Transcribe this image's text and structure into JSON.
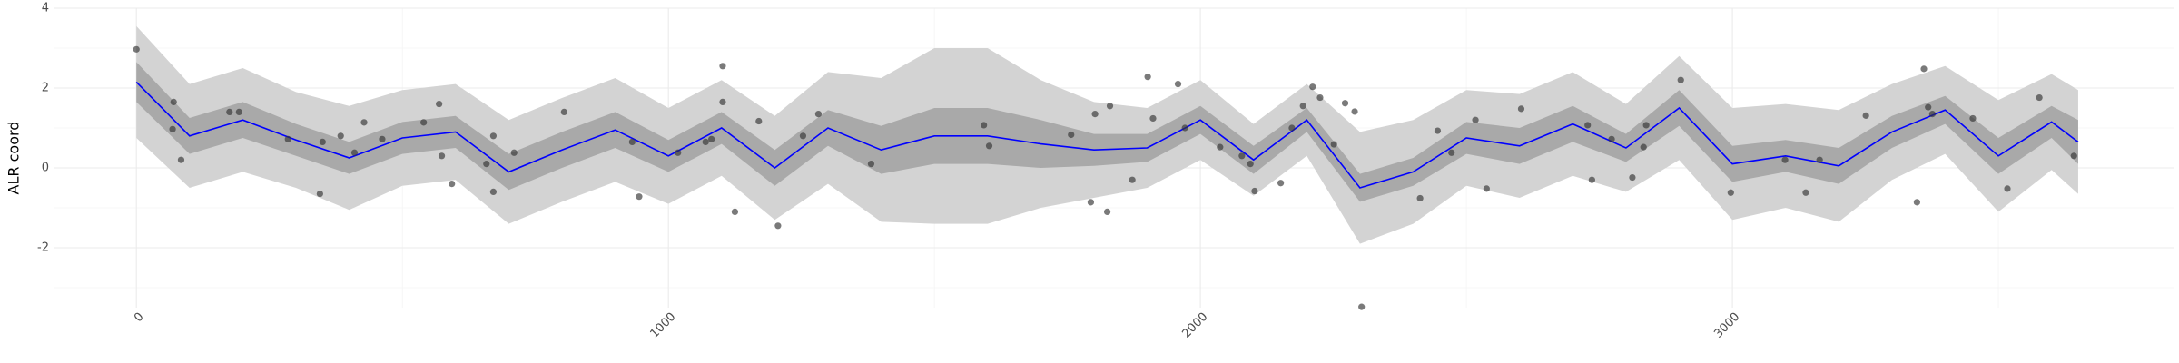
{
  "chart_data": {
    "type": "band-line",
    "ylabel": "ALR coord",
    "xlim": [
      -154,
      3831
    ],
    "ylim": [
      -3.5,
      4
    ],
    "xticks": [
      0,
      1000,
      2000,
      3000
    ],
    "yticks": [
      4,
      2,
      0,
      -2
    ],
    "x_minor_grid": [
      500,
      1500,
      2500,
      3500
    ],
    "y_minor_grid": [
      3,
      1,
      -1,
      -3
    ],
    "grid": true,
    "x": [
      0,
      100,
      200,
      300,
      400,
      500,
      600,
      700,
      800,
      900,
      1000,
      1100,
      1200,
      1300,
      1400,
      1500,
      1600,
      1700,
      1800,
      1900,
      2000,
      2100,
      2200,
      2300,
      2400,
      2500,
      2600,
      2700,
      2800,
      2900,
      3000,
      3100,
      3200,
      3300,
      3400,
      3500,
      3600,
      3650
    ],
    "band_outer": {
      "color": "#d3d3d3",
      "lower": [
        0.75,
        -0.5,
        -0.1,
        -0.5,
        -1.05,
        -0.45,
        -0.3,
        -1.4,
        -0.85,
        -0.35,
        -0.9,
        -0.2,
        -1.3,
        -0.4,
        -1.35,
        -1.4,
        -1.4,
        -1.0,
        -0.75,
        -0.5,
        0.2,
        -0.7,
        0.3,
        -1.9,
        -1.4,
        -0.45,
        -0.75,
        -0.2,
        -0.6,
        0.2,
        -1.3,
        -1.0,
        -1.35,
        -0.3,
        0.35,
        -1.1,
        -0.05,
        -0.65
      ],
      "upper": [
        3.55,
        2.1,
        2.5,
        1.9,
        1.55,
        1.95,
        2.1,
        1.2,
        1.75,
        2.25,
        1.5,
        2.2,
        1.3,
        2.4,
        2.25,
        3.0,
        3.0,
        2.2,
        1.65,
        1.5,
        2.2,
        1.1,
        2.1,
        0.9,
        1.2,
        1.95,
        1.85,
        2.4,
        1.6,
        2.8,
        1.5,
        1.6,
        1.45,
        2.1,
        2.55,
        1.7,
        2.35,
        1.95
      ]
    },
    "band_inner": {
      "color": "#a9a9a9",
      "lower": [
        1.65,
        0.35,
        0.75,
        0.3,
        -0.15,
        0.35,
        0.5,
        -0.55,
        0.0,
        0.5,
        -0.1,
        0.6,
        -0.45,
        0.55,
        -0.15,
        0.1,
        0.1,
        0.0,
        0.05,
        0.15,
        0.85,
        -0.15,
        0.9,
        -0.85,
        -0.45,
        0.35,
        0.1,
        0.65,
        0.15,
        1.05,
        -0.35,
        -0.1,
        -0.4,
        0.5,
        1.1,
        -0.15,
        0.75,
        0.1
      ],
      "upper": [
        2.65,
        1.25,
        1.65,
        1.1,
        0.65,
        1.15,
        1.3,
        0.35,
        0.9,
        1.4,
        0.7,
        1.4,
        0.45,
        1.45,
        1.05,
        1.5,
        1.5,
        1.2,
        0.85,
        0.85,
        1.55,
        0.55,
        1.5,
        -0.15,
        0.25,
        1.15,
        1.0,
        1.55,
        0.85,
        1.95,
        0.55,
        0.7,
        0.5,
        1.3,
        1.8,
        0.75,
        1.55,
        1.2
      ]
    },
    "line": {
      "color": "#0000ff",
      "values": [
        2.15,
        0.8,
        1.2,
        0.7,
        0.25,
        0.75,
        0.9,
        -0.1,
        0.45,
        0.95,
        0.3,
        1.0,
        0.0,
        1.0,
        0.45,
        0.8,
        0.8,
        0.6,
        0.45,
        0.5,
        1.2,
        0.2,
        1.2,
        -0.5,
        -0.1,
        0.75,
        0.55,
        1.1,
        0.5,
        1.5,
        0.1,
        0.3,
        0.05,
        0.9,
        1.45,
        0.3,
        1.15,
        0.65
      ]
    },
    "points": {
      "color": "#333333",
      "x": [
        0,
        70,
        68,
        84,
        175,
        193,
        285,
        350,
        345,
        384,
        410,
        428,
        462,
        540,
        569,
        574,
        593,
        658,
        671,
        671,
        710,
        804,
        932,
        945,
        1018,
        1070,
        1081,
        1102,
        1102,
        1125,
        1170,
        1206,
        1253,
        1282,
        1381,
        1593,
        1603,
        1757,
        1794,
        1802,
        1825,
        1830,
        1872,
        1901,
        1911,
        1958,
        1971,
        2037,
        2078,
        2094,
        2102,
        2151,
        2172,
        2193,
        2211,
        2225,
        2251,
        2272,
        2290,
        2303,
        2413,
        2446,
        2472,
        2517,
        2538,
        2603,
        2728,
        2736,
        2773,
        2812,
        2833,
        2838,
        2903,
        2997,
        3099,
        3138,
        3164,
        3251,
        3347,
        3360,
        3368,
        3376,
        3452,
        3517,
        3577,
        3642
      ],
      "y": [
        2.97,
        1.65,
        0.97,
        0.2,
        1.4,
        1.4,
        0.72,
        0.65,
        -0.65,
        0.8,
        0.38,
        1.14,
        0.72,
        1.14,
        1.6,
        0.3,
        -0.4,
        0.1,
        0.8,
        -0.6,
        0.38,
        1.4,
        0.65,
        -0.72,
        0.38,
        0.65,
        0.72,
        2.55,
        1.65,
        -1.1,
        1.17,
        -1.45,
        0.8,
        1.35,
        0.1,
        1.07,
        0.55,
        0.83,
        -0.86,
        1.35,
        -1.1,
        1.55,
        -0.3,
        2.28,
        1.24,
        2.1,
        1.0,
        0.52,
        0.3,
        0.1,
        -0.58,
        -0.38,
        1.0,
        1.55,
        2.03,
        1.76,
        0.59,
        1.62,
        1.41,
        -3.48,
        -0.76,
        0.93,
        0.38,
        1.2,
        -0.52,
        1.48,
        1.07,
        -0.3,
        0.72,
        -0.24,
        0.52,
        1.07,
        2.2,
        -0.62,
        0.2,
        -0.62,
        0.2,
        1.31,
        -0.86,
        2.48,
        1.52,
        1.35,
        1.24,
        -0.52,
        1.76,
        0.3
      ]
    }
  }
}
